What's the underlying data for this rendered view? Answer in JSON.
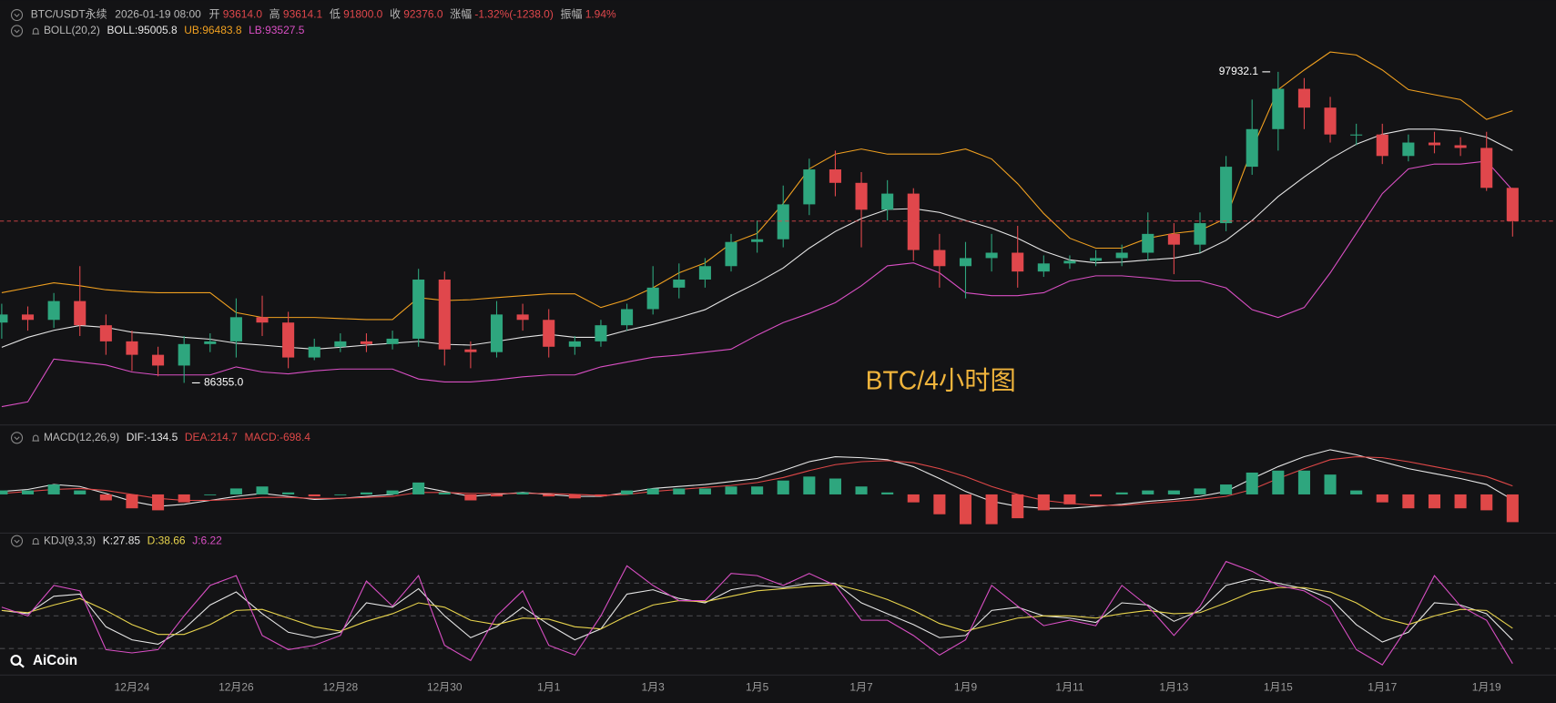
{
  "header": {
    "symbol": "BTC/USDT永续",
    "time": "2026-01-19 08:00",
    "fields": [
      {
        "label": "开",
        "value": "93614.0"
      },
      {
        "label": "高",
        "value": "93614.1"
      },
      {
        "label": "低",
        "value": "91800.0"
      },
      {
        "label": "收",
        "value": "92376.0"
      },
      {
        "label": "涨幅",
        "value": "-1.32%(-1238.0)"
      },
      {
        "label": "振幅",
        "value": "1.94%"
      }
    ]
  },
  "watermark": "BTC/4小时图",
  "logo": "AiCoin",
  "chart_data": [
    {
      "type": "candlestick",
      "title": "BOLL(20,2)",
      "up_color": "#2ea67e",
      "down_color": "#e0474c",
      "ylim": [
        84900,
        100600
      ],
      "annotations": [
        {
          "text": "97932.1"
        },
        {
          "text": "86355.0"
        }
      ],
      "categories": [
        null,
        null,
        null,
        null,
        null,
        "12月24",
        null,
        null,
        null,
        "12月26",
        null,
        null,
        null,
        "12月28",
        null,
        null,
        null,
        "12月30",
        null,
        null,
        null,
        "1月1",
        null,
        null,
        null,
        "1月3",
        null,
        null,
        null,
        "1月5",
        null,
        null,
        null,
        "1月7",
        null,
        null,
        null,
        "1月9",
        null,
        null,
        null,
        "1月11",
        null,
        null,
        null,
        "1月13",
        null,
        null,
        null,
        "1月15",
        null,
        null,
        null,
        "1月17",
        null,
        null,
        null,
        "1月19",
        null
      ],
      "open": [
        88600,
        88900,
        88700,
        89400,
        88500,
        87900,
        87400,
        87000,
        87800,
        87900,
        88800,
        88600,
        87300,
        87700,
        87900,
        87800,
        88000,
        90200,
        87600,
        87500,
        88900,
        88700,
        87700,
        87900,
        88500,
        89100,
        89900,
        90200,
        90700,
        91600,
        91700,
        93000,
        94300,
        93800,
        92800,
        93400,
        91300,
        90700,
        91000,
        91200,
        90500,
        90800,
        90900,
        91000,
        91200,
        91900,
        91500,
        92300,
        94400,
        95800,
        97300,
        96600,
        95600,
        95600,
        94800,
        95300,
        95200,
        95100,
        93614.0
      ],
      "high": [
        89300,
        89200,
        89700,
        90700,
        88900,
        88300,
        87700,
        88100,
        88200,
        89500,
        89600,
        89000,
        88000,
        88200,
        88200,
        88300,
        90600,
        90500,
        87900,
        89400,
        89300,
        89100,
        88100,
        88700,
        89300,
        90700,
        90800,
        91000,
        91900,
        92400,
        93700,
        94700,
        95000,
        94200,
        93900,
        93600,
        91900,
        91600,
        91900,
        92200,
        91100,
        91100,
        91300,
        91500,
        92700,
        92300,
        92700,
        94800,
        96900,
        97932.1,
        97700,
        97000,
        96000,
        96000,
        95600,
        95700,
        95500,
        95700,
        93614.1
      ],
      "low": [
        88000,
        88300,
        88400,
        88100,
        87400,
        86800,
        86600,
        86355,
        87500,
        87300,
        88100,
        86900,
        87200,
        87500,
        87500,
        87600,
        87700,
        87000,
        86900,
        87300,
        88300,
        87300,
        87400,
        87700,
        88300,
        88900,
        89500,
        89900,
        90500,
        91200,
        91400,
        92600,
        93300,
        91400,
        92400,
        90900,
        89900,
        89500,
        90500,
        89900,
        90300,
        90600,
        90700,
        90700,
        90900,
        90400,
        91200,
        92000,
        94100,
        95000,
        95800,
        95300,
        95200,
        94500,
        94600,
        94900,
        94800,
        93500,
        91800
      ],
      "close": [
        88900,
        88700,
        89400,
        88500,
        87900,
        87400,
        87000,
        87800,
        87900,
        88800,
        88600,
        87300,
        87700,
        87900,
        87800,
        88000,
        90200,
        87600,
        87500,
        88900,
        88700,
        87700,
        87900,
        88500,
        89100,
        89900,
        90200,
        90700,
        91600,
        91700,
        93000,
        94300,
        93800,
        92800,
        93400,
        91300,
        90700,
        91000,
        91200,
        90500,
        90800,
        90900,
        91000,
        91200,
        91900,
        91500,
        92300,
        94400,
        95800,
        97300,
        96600,
        95600,
        95600,
        94800,
        95300,
        95200,
        95100,
        93614.0,
        92376.0
      ],
      "series": [
        {
          "name": "BOLL:95005.8",
          "color": "#e6e6e6",
          "values": [
            87680,
            88050,
            88310,
            88490,
            88420,
            88240,
            88160,
            88050,
            87980,
            87830,
            87760,
            87680,
            87610,
            87680,
            87760,
            87830,
            87900,
            87790,
            87760,
            87900,
            88050,
            88160,
            88050,
            88050,
            88310,
            88530,
            88790,
            89080,
            89600,
            90080,
            90630,
            91370,
            91990,
            92470,
            92810,
            92840,
            92700,
            92400,
            92110,
            91740,
            91260,
            90930,
            90820,
            90850,
            90930,
            91000,
            91190,
            91660,
            92400,
            93290,
            94020,
            94690,
            95240,
            95610,
            95800,
            95800,
            95720,
            95500,
            95005.8
          ]
        },
        {
          "name": "UB:96483.8",
          "color": "#f0a020",
          "values": [
            89710,
            89895,
            90080,
            89970,
            89820,
            89750,
            89710,
            89710,
            89710,
            88970,
            88790,
            88790,
            88790,
            88750,
            88710,
            88710,
            89530,
            89420,
            89450,
            89530,
            89600,
            89670,
            89670,
            89160,
            89450,
            89895,
            90450,
            90820,
            91550,
            91920,
            93030,
            94320,
            94870,
            95060,
            94870,
            94870,
            94870,
            95060,
            94690,
            93770,
            92660,
            91740,
            91370,
            91370,
            91740,
            91920,
            92030,
            92480,
            95060,
            97270,
            98000,
            98670,
            98560,
            98000,
            97270,
            97080,
            96900,
            96160,
            96483.8
          ]
        },
        {
          "name": "LB:93527.5",
          "color": "#d94fc4",
          "values": [
            85470,
            85650,
            87240,
            87130,
            87020,
            86760,
            86650,
            86650,
            86650,
            86950,
            86760,
            86690,
            86800,
            86870,
            86870,
            86870,
            86500,
            86390,
            86390,
            86470,
            86580,
            86650,
            86650,
            86950,
            87130,
            87310,
            87390,
            87500,
            87610,
            88130,
            88600,
            88940,
            89340,
            89970,
            90710,
            90820,
            90450,
            89710,
            89600,
            89600,
            89710,
            90150,
            90340,
            90340,
            90260,
            90150,
            90150,
            89890,
            89080,
            88790,
            89160,
            90450,
            91920,
            93400,
            94320,
            94500,
            94500,
            94610,
            93527.5
          ]
        }
      ]
    },
    {
      "type": "line",
      "title": "MACD(12,26,9)",
      "ylim": [
        -900,
        1650
      ],
      "series": [
        {
          "name": "DIF:-134.5",
          "color": "#e6e6e6",
          "values": [
            75,
            125,
            250,
            200,
            25,
            -175,
            -300,
            -250,
            -150,
            -50,
            25,
            -50,
            -125,
            -100,
            -50,
            0,
            200,
            75,
            -50,
            0,
            50,
            0,
            -50,
            -50,
            50,
            150,
            200,
            250,
            325,
            400,
            600,
            825,
            950,
            925,
            875,
            700,
            400,
            75,
            -175,
            -300,
            -350,
            -350,
            -300,
            -250,
            -175,
            -125,
            -50,
            75,
            400,
            700,
            950,
            1125,
            1000,
            825,
            650,
            525,
            400,
            250,
            -134.5
          ]
        },
        {
          "name": "DEA:214.7",
          "color": "#e04848",
          "values": [
            25,
            75,
            125,
            150,
            100,
            0,
            -100,
            -150,
            -150,
            -125,
            -75,
            -75,
            -100,
            -100,
            -75,
            -50,
            50,
            50,
            25,
            25,
            25,
            25,
            0,
            -25,
            0,
            75,
            125,
            175,
            225,
            300,
            425,
            600,
            750,
            825,
            850,
            800,
            650,
            450,
            200,
            0,
            -150,
            -225,
            -275,
            -275,
            -225,
            -175,
            -125,
            -50,
            125,
            400,
            650,
            875,
            950,
            925,
            825,
            700,
            575,
            450,
            214.7
          ]
        },
        {
          "name": "MACD:-698.4",
          "type": "bar",
          "color": "#e04848",
          "up_color": "#2ea67e",
          "values": [
            100,
            100,
            250,
            100,
            -150,
            -350,
            -400,
            -200,
            0,
            150,
            200,
            50,
            -50,
            0,
            50,
            100,
            300,
            50,
            -150,
            -50,
            50,
            -50,
            -100,
            -50,
            100,
            150,
            150,
            150,
            200,
            200,
            350,
            450,
            400,
            200,
            50,
            -200,
            -500,
            -750,
            -750,
            -600,
            -400,
            -250,
            -50,
            50,
            100,
            100,
            150,
            250,
            550,
            600,
            600,
            500,
            100,
            -200,
            -350,
            -350,
            -350,
            -400,
            -698.4
          ]
        }
      ]
    },
    {
      "type": "line",
      "title": "KDJ(9,3,3)",
      "ylim": [
        -8,
        116
      ],
      "levels": [
        20,
        50,
        80
      ],
      "series": [
        {
          "name": "K:27.85",
          "color": "#e6e6e6",
          "values": [
            55,
            52,
            68,
            70,
            40,
            28,
            24,
            38,
            60,
            72,
            52,
            35,
            30,
            35,
            62,
            58,
            75,
            50,
            30,
            40,
            58,
            42,
            28,
            38,
            70,
            74,
            66,
            62,
            74,
            78,
            76,
            80,
            80,
            62,
            52,
            42,
            30,
            32,
            55,
            58,
            50,
            48,
            44,
            62,
            60,
            45,
            55,
            78,
            84,
            80,
            75,
            66,
            42,
            26,
            35,
            62,
            60,
            52,
            27.85
          ]
        },
        {
          "name": "D:38.66",
          "color": "#e8d44d",
          "values": [
            55,
            53,
            60,
            66,
            55,
            42,
            33,
            33,
            42,
            55,
            56,
            48,
            40,
            36,
            45,
            52,
            62,
            58,
            46,
            42,
            48,
            47,
            40,
            38,
            50,
            60,
            64,
            63,
            68,
            73,
            75,
            77,
            79,
            73,
            65,
            55,
            43,
            36,
            42,
            48,
            50,
            50,
            48,
            52,
            55,
            52,
            53,
            62,
            72,
            76,
            76,
            72,
            62,
            48,
            42,
            50,
            56,
            55,
            38.66
          ]
        },
        {
          "name": "J:6.22",
          "color": "#d94fc4",
          "values": [
            58,
            50,
            78,
            73,
            19,
            16,
            19,
            50,
            78,
            87,
            32,
            19,
            23,
            32,
            82,
            59,
            87,
            23,
            9,
            50,
            73,
            23,
            14,
            50,
            96,
            78,
            64,
            64,
            89,
            87,
            78,
            89,
            78,
            46,
            46,
            32,
            14,
            28,
            78,
            59,
            41,
            46,
            41,
            78,
            59,
            32,
            59,
            100,
            91,
            78,
            73,
            59,
            19,
            5,
            41,
            87,
            59,
            46,
            6.22
          ]
        }
      ]
    }
  ]
}
